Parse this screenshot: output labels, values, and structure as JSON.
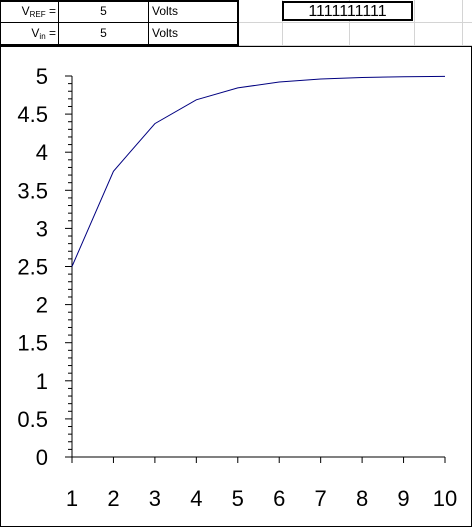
{
  "sheet": {
    "rows": [
      {
        "label_main": "V",
        "label_sub": "REF",
        "label_tail": " =",
        "value": "5",
        "unit": "Volts"
      },
      {
        "label_main": "V",
        "label_sub": "in",
        "label_tail": " =",
        "value": "5",
        "unit": "Volts"
      }
    ],
    "output_code": "1111111111"
  },
  "chart_data": {
    "type": "line",
    "title": "",
    "xlabel": "",
    "ylabel": "",
    "categories": [
      "1",
      "2",
      "3",
      "4",
      "5",
      "6",
      "7",
      "8",
      "9",
      "10"
    ],
    "series": [
      {
        "values": [
          2.5,
          3.75,
          4.375,
          4.6875,
          4.84375,
          4.921875,
          4.9609375,
          4.98046875,
          4.990234375,
          4.9951171875
        ],
        "color": "#000080"
      }
    ],
    "ylim": [
      0,
      5
    ],
    "yticks": [
      "0",
      "0.5",
      "1",
      "1.5",
      "2",
      "2.5",
      "3",
      "3.5",
      "4",
      "4.5",
      "5"
    ],
    "grid": false,
    "legend": "none"
  }
}
